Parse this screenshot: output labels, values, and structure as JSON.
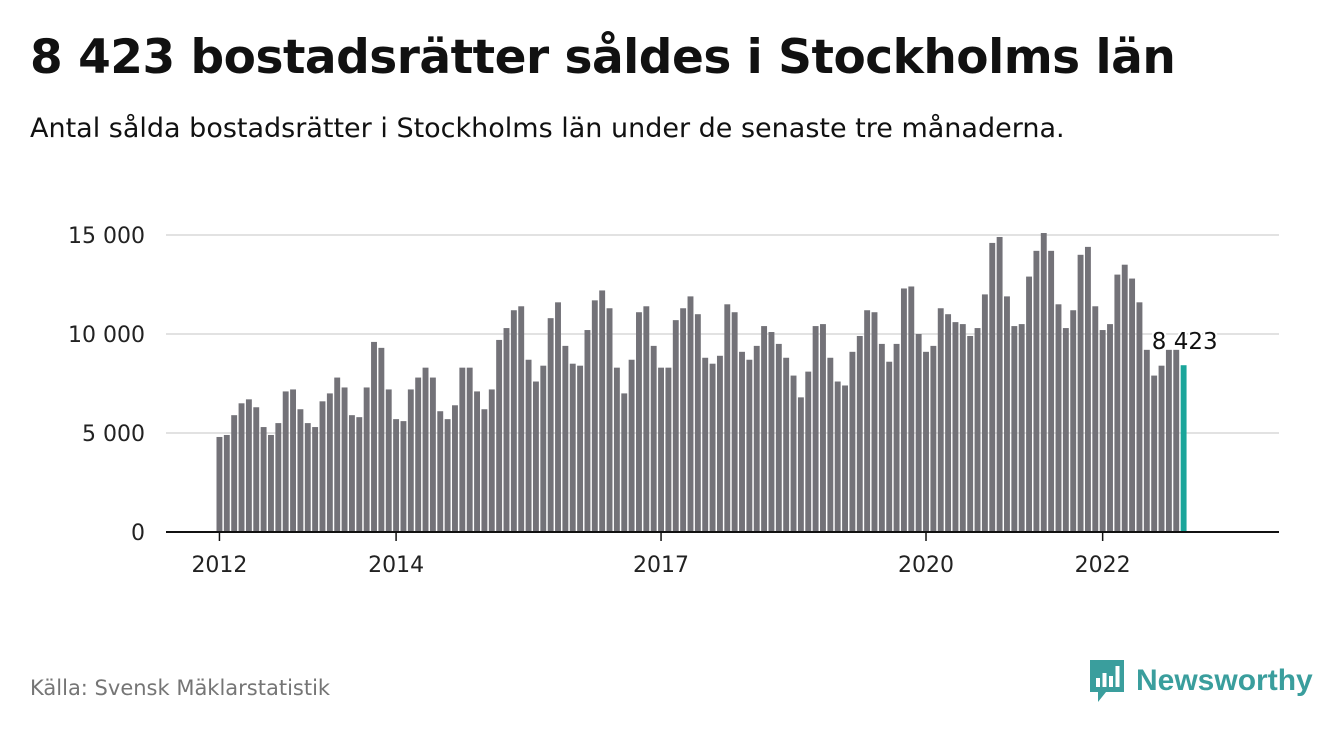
{
  "title": "8 423 bostadsrätter såldes i Stockholms län",
  "subtitle": "Antal sålda bostadsrätter i Stockholms län under de senaste tre månaderna.",
  "source": "Källa: Svensk Mäklarstatistik",
  "brand": {
    "name": "Newsworthy",
    "color": "#3a9e9d",
    "icon": "newsworthy-bar-chart-icon"
  },
  "chart_data": {
    "type": "bar",
    "x_start": "2012-01",
    "x_ticks": [
      "2012",
      "2014",
      "2017",
      "2020",
      "2022"
    ],
    "y_ticks": [
      "0",
      "5 000",
      "10 000",
      "15 000"
    ],
    "y_tick_values": [
      0,
      5000,
      10000,
      15000
    ],
    "ylim": [
      0,
      15000
    ],
    "grid": true,
    "bar_color": "#737278",
    "highlight_color": "#1aa59a",
    "highlight_label": "8 423",
    "values": [
      4800,
      4900,
      5900,
      6500,
      6700,
      6300,
      5300,
      4900,
      5500,
      7100,
      7200,
      6200,
      5500,
      5300,
      6600,
      7000,
      7800,
      7300,
      5900,
      5800,
      7300,
      9600,
      9300,
      7200,
      5700,
      5600,
      7200,
      7800,
      8300,
      7800,
      6100,
      5700,
      6400,
      8300,
      8300,
      7100,
      6200,
      7200,
      9700,
      10300,
      11200,
      11400,
      8700,
      7600,
      8400,
      10800,
      11600,
      9400,
      8500,
      8400,
      10200,
      11700,
      12200,
      11300,
      8300,
      7000,
      8700,
      11100,
      11400,
      9400,
      8300,
      8300,
      10700,
      11300,
      11900,
      11000,
      8800,
      8500,
      8900,
      11500,
      11100,
      9100,
      8700,
      9400,
      10400,
      10100,
      9500,
      8800,
      7900,
      6800,
      8100,
      10400,
      10500,
      8800,
      7600,
      7400,
      9100,
      9900,
      11200,
      11100,
      9500,
      8600,
      9500,
      12300,
      12400,
      10000,
      9100,
      9400,
      11300,
      11000,
      10600,
      10500,
      9900,
      10300,
      12000,
      14600,
      14900,
      11900,
      10400,
      10500,
      12900,
      14200,
      15100,
      14200,
      11500,
      10300,
      11200,
      14000,
      14400,
      11400,
      10200,
      10500,
      13000,
      13500,
      12800,
      11600,
      9200,
      7900,
      8400,
      9200,
      9200,
      8423
    ]
  }
}
